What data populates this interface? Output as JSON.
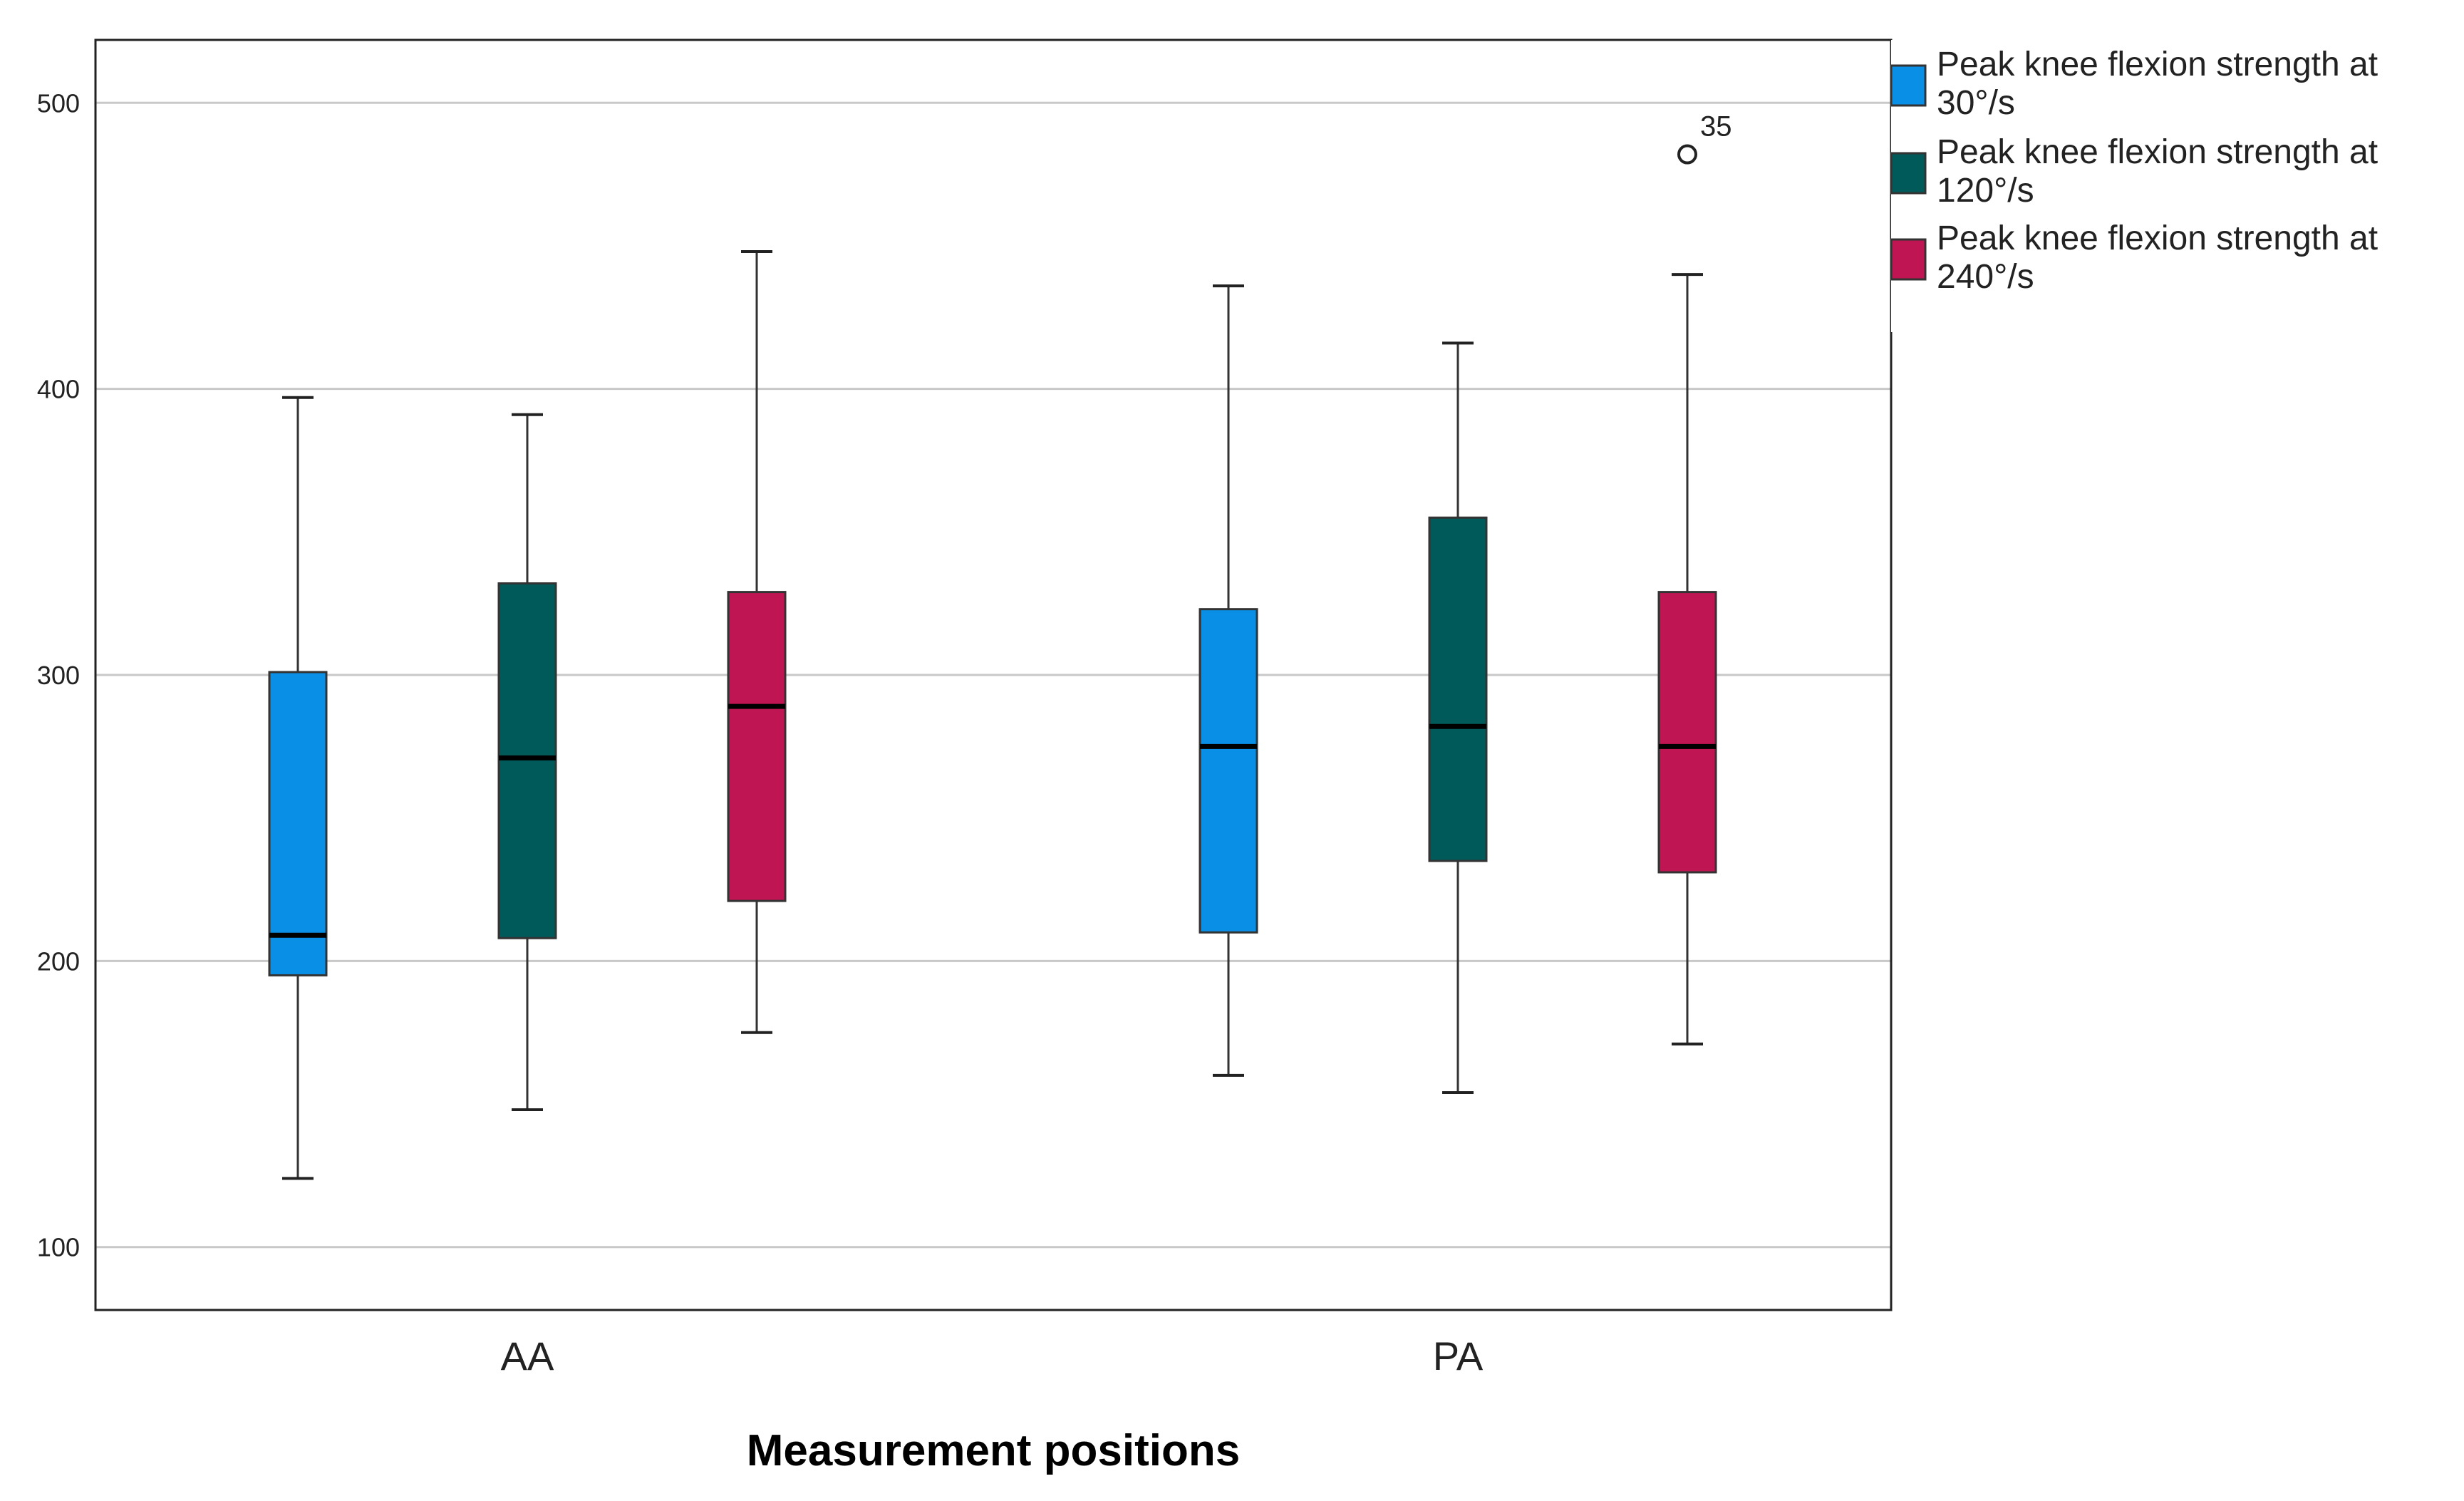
{
  "chart_data": {
    "type": "boxplot",
    "title": "",
    "xlabel": "Measurement positions",
    "ylabel": "",
    "ylim": [
      78,
      522
    ],
    "yticks": [
      100,
      200,
      300,
      400,
      500
    ],
    "ytick_labels": [
      "100",
      "200",
      "300",
      "400",
      "500"
    ],
    "grid": true,
    "legend_position": "top-right",
    "categories": [
      "AA",
      "PA"
    ],
    "series": [
      {
        "name_line1": "Peak knee flexion strength at",
        "name_line2": "30°/s",
        "color": "#0A8FE6",
        "boxes": [
          {
            "whisker_low": 124,
            "q1": 195,
            "median": 209,
            "q3": 301,
            "whisker_high": 397
          },
          {
            "whisker_low": 160,
            "q1": 210,
            "median": 275,
            "q3": 323,
            "whisker_high": 436
          }
        ]
      },
      {
        "name_line1": "Peak knee flexion strength at",
        "name_line2": "120°/s",
        "color": "#005A5A",
        "boxes": [
          {
            "whisker_low": 148,
            "q1": 208,
            "median": 271,
            "q3": 332,
            "whisker_high": 391
          },
          {
            "whisker_low": 154,
            "q1": 235,
            "median": 282,
            "q3": 355,
            "whisker_high": 416
          }
        ]
      },
      {
        "name_line1": "Peak knee flexion strength at",
        "name_line2": "240°/s",
        "color": "#BF1553",
        "boxes": [
          {
            "whisker_low": 175,
            "q1": 221,
            "median": 289,
            "q3": 329,
            "whisker_high": 448
          },
          {
            "whisker_low": 171,
            "q1": 231,
            "median": 275,
            "q3": 329,
            "whisker_high": 440
          }
        ]
      }
    ],
    "outliers": [
      {
        "series": 2,
        "category": 1,
        "value": 482,
        "label": "35"
      }
    ]
  }
}
